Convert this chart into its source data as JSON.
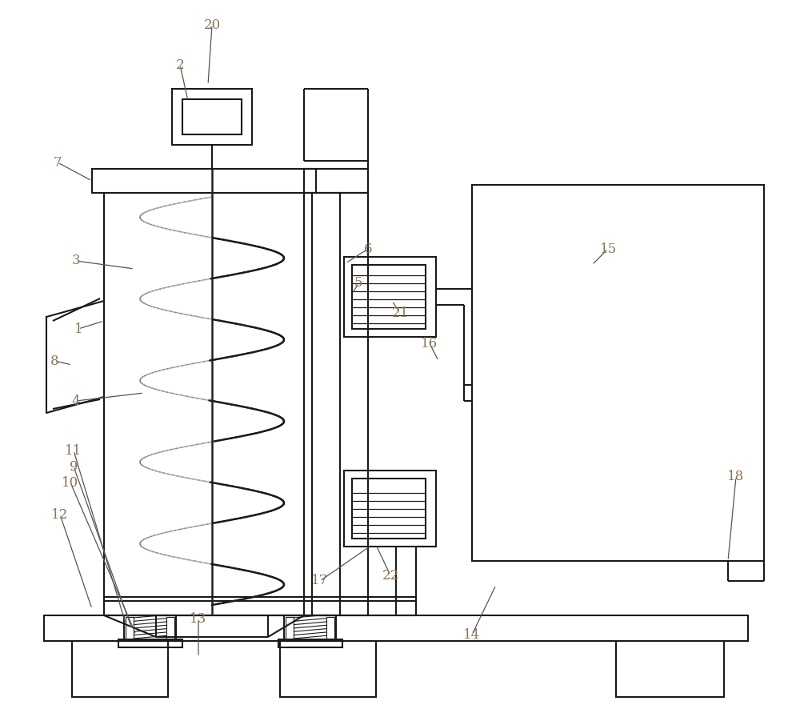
{
  "bg": "#ffffff",
  "lc": "#1a1a1a",
  "lw": 1.5,
  "fw": 10.0,
  "fh": 9.01,
  "lbl_c": "#8B7355",
  "lbl_fs": 12
}
